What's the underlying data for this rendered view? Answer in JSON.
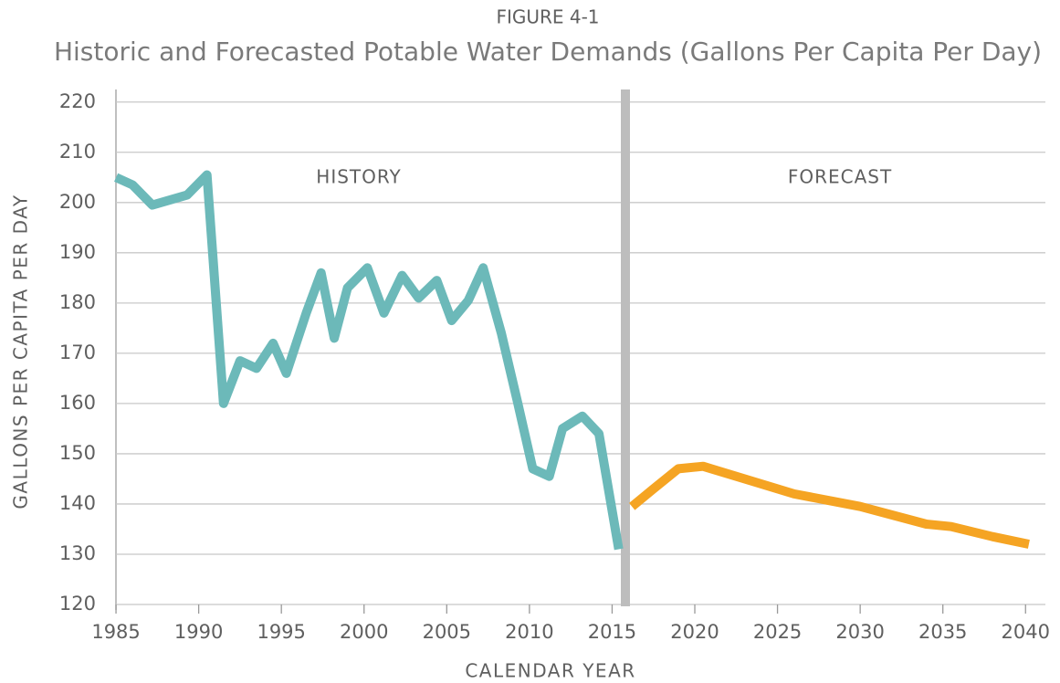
{
  "chart_data": {
    "type": "line",
    "supertitle": "FIGURE 4-1",
    "title": "Historic and Forecasted Potable Water Demands (Gallons Per Capita Per Day)",
    "ylabel": "GALLONS PER CAPITA PER DAY",
    "xlabel": "CALENDAR YEAR",
    "annotations": [
      "HISTORY",
      "FORECAST"
    ],
    "xlim": [
      1984.5,
      2041.2
    ],
    "xticks": [
      1985,
      1990,
      1995,
      2000,
      2005,
      2010,
      2015,
      2020,
      2025,
      2030,
      2035,
      2040
    ],
    "ylim": [
      120,
      222.5
    ],
    "yticks": [
      120,
      130,
      140,
      150,
      160,
      170,
      180,
      190,
      200,
      210,
      220
    ],
    "grid": true,
    "series": [
      {
        "color": "#6cb9b9",
        "x": [
          1985,
          1986,
          1987.2,
          1989.3,
          1990.5,
          1991.5,
          1992.5,
          1993.5,
          1994.5,
          1995.3,
          1996.5,
          1997.4,
          1998.2,
          1999,
          2000.2,
          2001.2,
          2002.3,
          2003.3,
          2004.4,
          2005.3,
          2006.3,
          2007.2,
          2008.3,
          2009.3,
          2010.2,
          2011.2,
          2012,
          2013.2,
          2014.2,
          2015.4
        ],
        "values": [
          205,
          203.5,
          199.5,
          201.5,
          205.5,
          160,
          168.5,
          167,
          172,
          166,
          178,
          186,
          173,
          183,
          187,
          178,
          185.5,
          181,
          184.5,
          176.5,
          180.5,
          187,
          174,
          160,
          147,
          145.5,
          155,
          157.5,
          154,
          131
        ]
      },
      {
        "color": "#f5a423",
        "x": [
          2016.2,
          2017.5,
          2019,
          2020.5,
          2023,
          2026,
          2030,
          2034,
          2035.5,
          2038,
          2040.2
        ],
        "values": [
          139.5,
          143,
          147,
          147.5,
          145,
          142,
          139.5,
          136,
          135.5,
          133.5,
          132
        ]
      }
    ]
  }
}
